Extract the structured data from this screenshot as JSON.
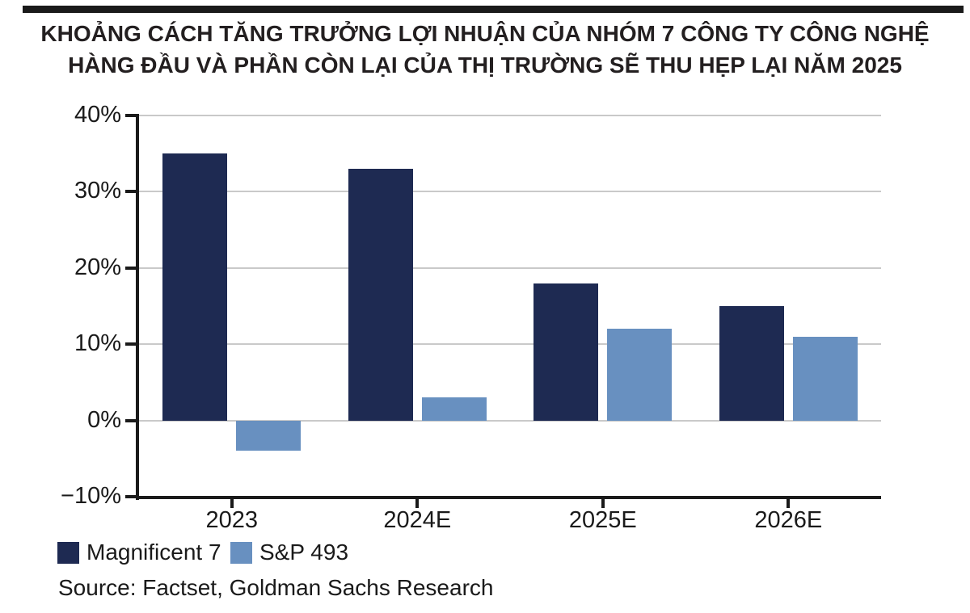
{
  "title": {
    "line1": "KHOẢNG CÁCH TĂNG TRƯỞNG LỢI NHUẬN CỦA NHÓM 7 CÔNG TY CÔNG NGHỆ",
    "line2": "HÀNG ĐẦU VÀ PHẦN CÒN LẠI CỦA THỊ TRƯỜNG SẼ THU HẸP LẠI NĂM 2025"
  },
  "source": "Source: Factset, Goldman Sachs Research",
  "colors": {
    "mag7": "#1e2a52",
    "sp493": "#6890c0",
    "axis": "#1a1a1a",
    "grid": "#c9c9c9"
  },
  "chart_data": {
    "type": "bar",
    "categories": [
      "2023",
      "2024E",
      "2025E",
      "2026E"
    ],
    "series": [
      {
        "name": "Magnificent 7",
        "color_key": "mag7",
        "values": [
          35,
          33,
          18,
          15
        ]
      },
      {
        "name": "S&P 493",
        "color_key": "sp493",
        "values": [
          -4,
          3,
          12,
          11
        ]
      }
    ],
    "yticks": [
      {
        "value": 40,
        "label": "40%"
      },
      {
        "value": 30,
        "label": "30%"
      },
      {
        "value": 20,
        "label": "20%"
      },
      {
        "value": 10,
        "label": "10%"
      },
      {
        "value": 0,
        "label": "0%"
      },
      {
        "value": -10,
        "label": "−10%"
      }
    ],
    "ylim": [
      -10,
      40
    ],
    "xlabel": "",
    "ylabel": "",
    "grid": true,
    "legend_position": "bottom-left"
  }
}
